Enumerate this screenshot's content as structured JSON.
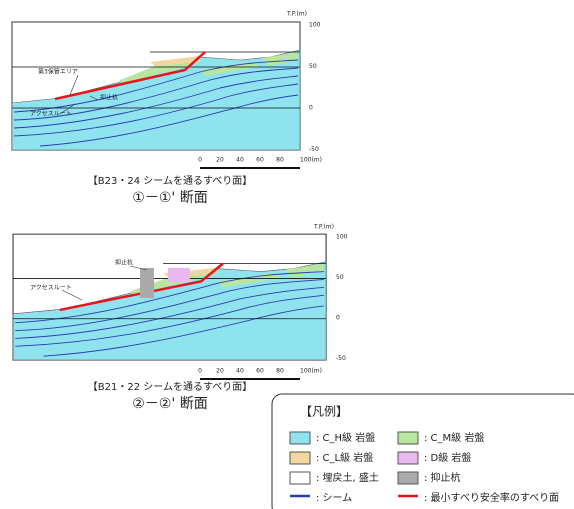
{
  "sections": [
    {
      "elevation_label": "T.P.(m)",
      "elevation_ticks": [
        "100",
        "50",
        "0",
        "-50"
      ],
      "labels": [
        "第3保管エリア",
        "抑止杭",
        "アクセスルート"
      ],
      "scale_ticks": [
        "0",
        "20",
        "40",
        "60",
        "80",
        "100(m)"
      ],
      "caption": "【B23・24 シームを通るすべり面】",
      "title": "①－①' 断面"
    },
    {
      "elevation_label": "T.P.(m)",
      "elevation_ticks": [
        "100",
        "50",
        "0",
        "-50"
      ],
      "labels": [
        "抑止杭",
        "アクセスルート"
      ],
      "scale_ticks": [
        "0",
        "20",
        "40",
        "60",
        "80",
        "100(m)"
      ],
      "caption": "【B21・22 シームを通るすべり面】",
      "title": "②－②' 断面"
    }
  ],
  "legend": {
    "title": "【凡例】",
    "items": [
      ": C_H級 岩盤",
      ": C_M級 岩盤",
      ": C_L級 岩盤",
      ": D級 岩盤",
      ": 埋戻土, 盛土",
      ": 抑止杭",
      ": シーム",
      ": 最小すべり安全率のすべり面"
    ]
  }
}
